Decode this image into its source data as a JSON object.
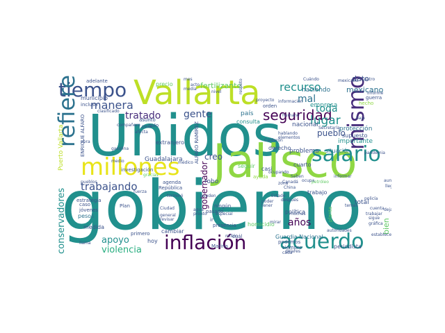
{
  "palette": {
    "teal": "#21908d",
    "green": "#8fd744",
    "lime": "#bddf26",
    "yellow": "#e8e419",
    "navy": "#3b528b",
    "blue": "#2c728e",
    "purple": "#440154",
    "violet": "#472d7b",
    "mint": "#5ec962",
    "sea": "#28ae80"
  },
  "words": [
    {
      "text": "Unidos"
    },
    {
      "text": "gobierno"
    },
    {
      "text": "Jalisco"
    },
    {
      "text": "Vallarta"
    },
    {
      "text": "millones"
    },
    {
      "text": "tiempo"
    },
    {
      "text": "inflación"
    },
    {
      "text": "acuerdo"
    },
    {
      "text": "salario"
    },
    {
      "text": "refiere"
    },
    {
      "text": "mismo"
    },
    {
      "text": "seguridad"
    },
    {
      "text": "conservadores"
    },
    {
      "text": "trabajando"
    },
    {
      "text": "manera"
    },
    {
      "text": "tratado"
    },
    {
      "text": "gente"
    },
    {
      "text": "recurso"
    },
    {
      "text": "lugar"
    },
    {
      "text": "toda"
    },
    {
      "text": "mal"
    },
    {
      "text": "apoyo"
    },
    {
      "text": "violencia"
    },
    {
      "text": "años"
    },
    {
      "text": "fertilizante"
    },
    {
      "text": "mexicano"
    },
    {
      "text": "pueblo"
    },
    {
      "text": "bien"
    },
    {
      "text": "gobernador"
    },
    {
      "text": "creo"
    },
    {
      "text": "dato"
    },
    {
      "text": "haciendo"
    },
    {
      "text": "nacional"
    },
    {
      "text": "empresa"
    },
    {
      "text": "protección"
    },
    {
      "text": "importante"
    },
    {
      "text": "supuesto"
    },
    {
      "text": "problema"
    },
    {
      "text": "situación"
    },
    {
      "text": "Guadalajara"
    },
    {
      "text": "país"
    },
    {
      "text": "consulta"
    },
    {
      "text": "robo"
    },
    {
      "text": "seguir"
    },
    {
      "text": "casi"
    },
    {
      "text": "cuarto"
    },
    {
      "text": "total"
    },
    {
      "text": "Guardia Nacional"
    },
    {
      "text": "homicidio"
    },
    {
      "text": "pesos"
    },
    {
      "text": "medida"
    },
    {
      "text": "hoy"
    },
    {
      "text": "extranjero"
    },
    {
      "text": "precio"
    },
    {
      "text": "municipio"
    },
    {
      "text": "incluso"
    },
    {
      "text": "periodista"
    },
    {
      "text": "política"
    },
    {
      "text": "Puerto Vallarta"
    },
    {
      "text": "ENRIQUE ALFARO"
    },
    {
      "text": "ALFARO RAMÍREZ"
    },
    {
      "text": "derecho"
    },
    {
      "text": "cambiar"
    },
    {
      "text": "ayuda"
    },
    {
      "text": "trabajo"
    },
    {
      "text": "hecho"
    },
    {
      "text": "adelante"
    },
    {
      "text": "Plan"
    },
    {
      "text": "Marina"
    },
    {
      "text": "orden"
    },
    {
      "text": "ningún"
    },
    {
      "text": "presencia"
    },
    {
      "text": "podemos"
    },
    {
      "text": "caso"
    },
    {
      "text": "estrategia"
    },
    {
      "text": "primero"
    },
    {
      "text": "República"
    },
    {
      "text": "agenda"
    },
    {
      "text": "investigación"
    },
    {
      "text": "jóvenes"
    },
    {
      "text": "cuál"
    },
    {
      "text": "pasado"
    },
    {
      "text": "asunto"
    },
    {
      "text": "solo"
    },
    {
      "text": "médico"
    },
    {
      "text": "mes"
    },
    {
      "text": "acto"
    },
    {
      "text": "llama"
    },
    {
      "text": "establece"
    },
    {
      "text": "dólares"
    },
    {
      "text": "siempre"
    },
    {
      "text": "cada"
    },
    {
      "text": "cuenta"
    },
    {
      "text": "trabajar"
    },
    {
      "text": "gráfica"
    },
    {
      "text": "autoridades"
    },
    {
      "text": "China"
    },
    {
      "text": "informar"
    },
    {
      "text": "zona"
    },
    {
      "text": "ocupando"
    },
    {
      "text": "policía"
    },
    {
      "text": "temas"
    },
    {
      "text": "pandemia"
    },
    {
      "text": "sigue"
    },
    {
      "text": "aunque"
    },
    {
      "text": "llegar"
    },
    {
      "text": "dejar"
    },
    {
      "text": "guerra"
    },
    {
      "text": "informe"
    },
    {
      "text": "baja"
    },
    {
      "text": "Cuándo"
    },
    {
      "text": "proyecto"
    },
    {
      "text": "información"
    },
    {
      "text": "Calderón"
    },
    {
      "text": "mexicana"
    },
    {
      "text": "hablando"
    },
    {
      "text": "elementos"
    },
    {
      "text": "Secretaría"
    },
    {
      "text": "después"
    },
    {
      "text": "pueden"
    },
    {
      "text": "fuerza"
    },
    {
      "text": "general"
    },
    {
      "text": "revisar"
    },
    {
      "text": "ir"
    },
    {
      "text": "cuatro"
    },
    {
      "text": "Saben"
    },
    {
      "text": "ocupa"
    },
    {
      "text": "Canadá"
    },
    {
      "text": "petróleo"
    },
    {
      "text": "Ciudad"
    },
    {
      "text": "agua"
    },
    {
      "text": "millón"
    },
    {
      "text": "pronto"
    },
    {
      "text": "especial"
    },
    {
      "text": "poder"
    },
    {
      "text": "tener"
    },
    {
      "text": "muchas"
    },
    {
      "text": "planta"
    },
    {
      "text": "gracias"
    },
    {
      "text": "pasa"
    },
    {
      "text": "compañero"
    },
    {
      "text": "afecta"
    },
    {
      "text": "clasificado"
    },
    {
      "text": "gasolina"
    },
    {
      "text": "humano"
    },
    {
      "text": "respeto"
    },
    {
      "text": "obra"
    },
    {
      "text": "pueblos"
    },
    {
      "text": "media"
    },
    {
      "text": "medio"
    },
    {
      "text": "terminó"
    },
    {
      "text": "mirar"
    },
    {
      "text": "nivel"
    },
    {
      "text": "Estado"
    }
  ]
}
